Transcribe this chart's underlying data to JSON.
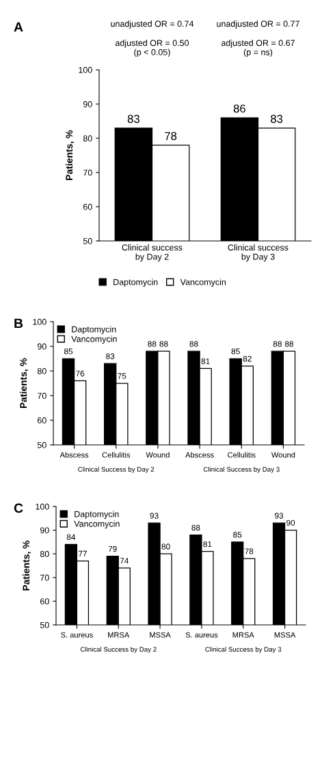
{
  "chart_data": [
    {
      "type": "bar",
      "title": "A",
      "ylabel": "Patients, %",
      "categories": [
        "Clinical success\nby Day 2",
        "Clinical success\nby Day 3"
      ],
      "series": [
        {
          "name": "Daptomycin",
          "color": "#000000",
          "values": [
            83,
            86
          ]
        },
        {
          "name": "Vancomycin",
          "color": "#ffffff",
          "values": [
            78,
            83
          ]
        }
      ],
      "ylim": [
        50,
        100
      ],
      "yticks": [
        50,
        60,
        70,
        80,
        90,
        100
      ],
      "data_labels": true,
      "legend": "bottom",
      "grid": false,
      "annotations": [
        "unadjusted OR = 0.74",
        "unadjusted OR = 0.77",
        "adjusted OR = 0.50\n(p < 0.05)",
        "adjusted OR = 0.67\n(p = ns)"
      ]
    },
    {
      "type": "bar",
      "title": "B",
      "ylabel": "Patients, %",
      "categories": [
        "Abscess",
        "Cellulitis",
        "Wound",
        "Abscess",
        "Cellulitis",
        "Wound"
      ],
      "series": [
        {
          "name": "Daptomycin",
          "color": "#000000",
          "values": [
            85,
            83,
            88,
            88,
            85,
            88
          ]
        },
        {
          "name": "Vancomycin",
          "color": "#ffffff",
          "values": [
            76,
            75,
            88,
            81,
            82,
            88
          ]
        }
      ],
      "ylim": [
        50,
        100
      ],
      "yticks": [
        50,
        60,
        70,
        80,
        90,
        100
      ],
      "data_labels": true,
      "legend": "top left",
      "grid": false,
      "annotations": [
        "Clinical Success by Day 2",
        "Clinical Success by Day 3"
      ]
    },
    {
      "type": "bar",
      "title": "C",
      "ylabel": "Patients, %",
      "categories": [
        "S. aureus",
        "MRSA",
        "MSSA",
        "S. aureus",
        "MRSA",
        "MSSA"
      ],
      "series": [
        {
          "name": "Daptomycin",
          "color": "#000000",
          "values": [
            84,
            79,
            93,
            88,
            85,
            93
          ]
        },
        {
          "name": "Vancomycin",
          "color": "#ffffff",
          "values": [
            77,
            74,
            80,
            81,
            78,
            90
          ]
        }
      ],
      "ylim": [
        50,
        100
      ],
      "yticks": [
        50,
        60,
        70,
        80,
        90,
        100
      ],
      "data_labels": true,
      "legend": "top left",
      "grid": false,
      "annotations": [
        "Clinical Success by Day 2",
        "Clinical Success by Day 3"
      ]
    }
  ]
}
